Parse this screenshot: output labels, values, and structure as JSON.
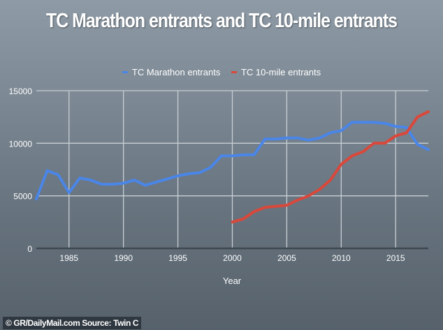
{
  "chart_data": {
    "type": "line",
    "title": "TC Marathon entrants and TC 10-mile entrants",
    "xlabel": "Year",
    "ylabel": "",
    "xlim": [
      1982,
      2018
    ],
    "ylim": [
      0,
      15000
    ],
    "xticks": [
      1985,
      1990,
      1995,
      2000,
      2005,
      2010,
      2015
    ],
    "yticks": [
      0,
      5000,
      10000,
      15000
    ],
    "grid": true,
    "legend_position": "top-center",
    "series": [
      {
        "name": "TC Marathon entrants",
        "color": "#4a86e8",
        "x": [
          1982,
          1983,
          1984,
          1985,
          1986,
          1987,
          1988,
          1989,
          1990,
          1991,
          1992,
          1993,
          1994,
          1995,
          1996,
          1997,
          1998,
          1999,
          2000,
          2001,
          2002,
          2003,
          2004,
          2005,
          2006,
          2007,
          2008,
          2009,
          2010,
          2011,
          2012,
          2013,
          2014,
          2015,
          2016,
          2017,
          2018
        ],
        "values": [
          4700,
          7400,
          7000,
          5300,
          6700,
          6500,
          6100,
          6100,
          6200,
          6500,
          6000,
          6300,
          6600,
          6900,
          7100,
          7200,
          7700,
          8800,
          8800,
          8900,
          8900,
          10400,
          10400,
          10500,
          10500,
          10300,
          10500,
          11000,
          11200,
          12000,
          12000,
          12000,
          11900,
          11600,
          11500,
          9900,
          9400
        ]
      },
      {
        "name": "TC 10-mile entrants",
        "color": "#d9483b",
        "x": [
          2000,
          2001,
          2002,
          2003,
          2004,
          2005,
          2006,
          2007,
          2008,
          2009,
          2010,
          2011,
          2012,
          2013,
          2014,
          2015,
          2016,
          2017,
          2018
        ],
        "values": [
          2500,
          2800,
          3500,
          3900,
          4000,
          4100,
          4600,
          5000,
          5600,
          6500,
          8000,
          8800,
          9200,
          10000,
          10000,
          10700,
          11000,
          12500,
          13000
        ]
      }
    ]
  },
  "credit": "© GR/DailyMail.com Source: Twin C"
}
